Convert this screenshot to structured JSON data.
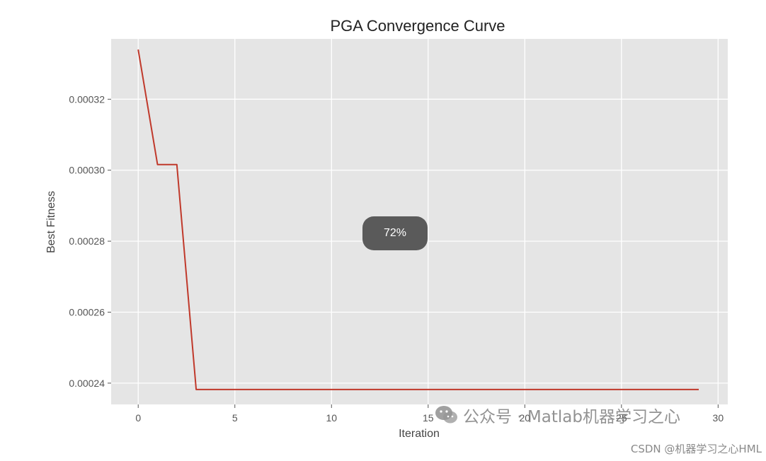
{
  "chart_data": {
    "type": "line",
    "title": "PGA Convergence Curve",
    "xlabel": "Iteration",
    "ylabel": "Best Fitness",
    "xlim": [
      -1.4,
      30.5
    ],
    "ylim": [
      0.000234,
      0.000337
    ],
    "grid": true,
    "x_ticks": [
      0,
      5,
      10,
      15,
      20,
      25,
      30
    ],
    "x_tick_labels": [
      "0",
      "5",
      "10",
      "15",
      "20",
      "25",
      "30"
    ],
    "y_ticks": [
      0.00024,
      0.00026,
      0.00028,
      0.0003,
      0.00032
    ],
    "y_tick_labels": [
      "0.00024",
      "0.00026",
      "0.00028",
      "0.00030",
      "0.00032"
    ],
    "series": [
      {
        "name": "Best Fitness",
        "color": "#c0392b",
        "x": [
          0,
          1,
          2,
          3,
          4,
          5,
          6,
          7,
          8,
          9,
          10,
          11,
          12,
          13,
          14,
          15,
          16,
          17,
          18,
          19,
          20,
          21,
          22,
          23,
          24,
          25,
          26,
          27,
          28,
          29
        ],
        "values": [
          0.000334,
          0.0003016,
          0.0003016,
          0.0002382,
          0.0002382,
          0.0002382,
          0.0002382,
          0.0002382,
          0.0002382,
          0.0002382,
          0.0002382,
          0.0002382,
          0.0002382,
          0.0002382,
          0.0002382,
          0.0002382,
          0.0002382,
          0.0002382,
          0.0002382,
          0.0002382,
          0.0002382,
          0.0002382,
          0.0002382,
          0.0002382,
          0.0002382,
          0.0002382,
          0.0002382,
          0.0002382,
          0.0002382,
          0.0002382
        ]
      }
    ]
  },
  "overlay": {
    "zoom_badge": "72%",
    "watermark_text": "公众号 · Matlab机器学习之心",
    "credit_text": "CSDN @机器学习之心HML"
  },
  "colors": {
    "plot_background": "#e5e5e5",
    "grid": "#ffffff",
    "line": "#c0392b",
    "badge": "#5a5a5a"
  }
}
